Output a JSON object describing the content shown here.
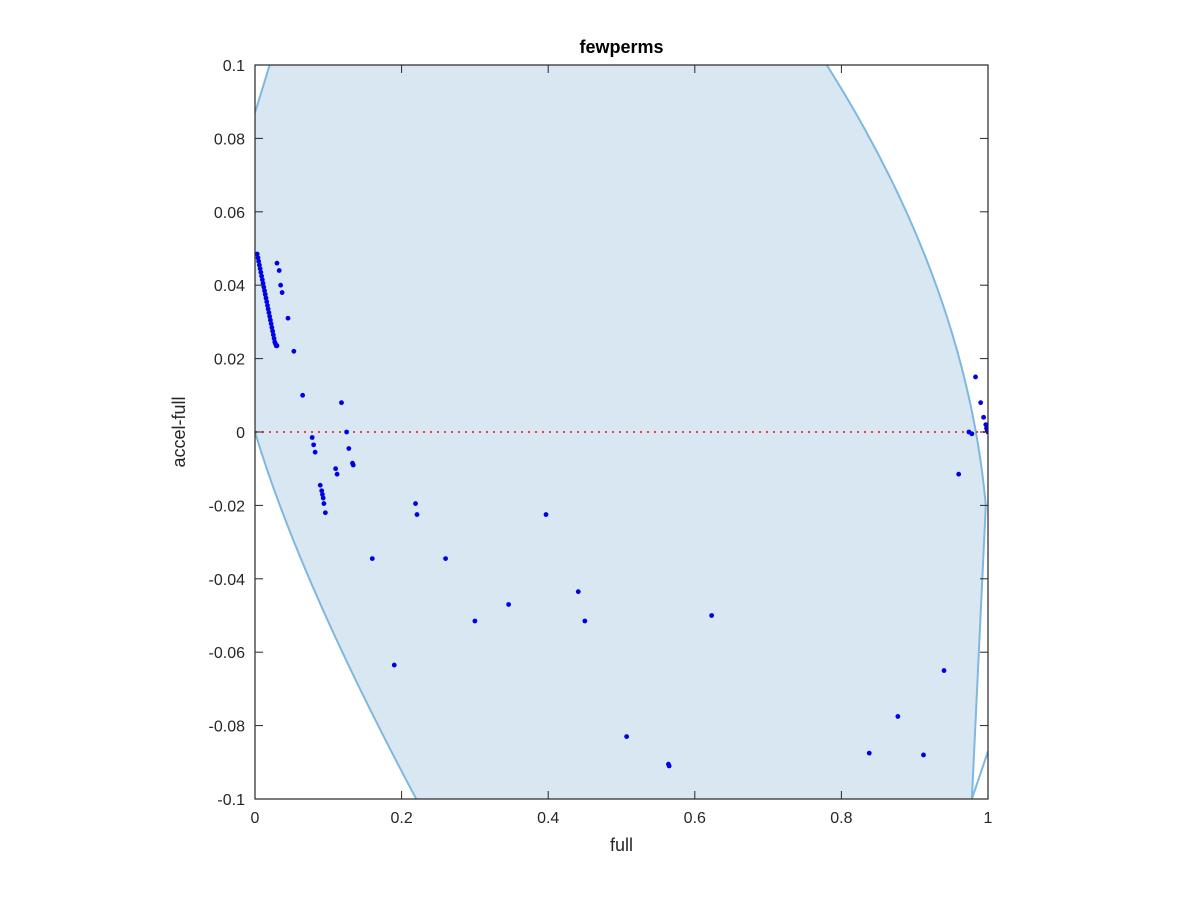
{
  "chart_data": {
    "type": "scatter",
    "title": "fewperms",
    "xlabel": "full",
    "ylabel": "accel-full",
    "xlim": [
      0,
      1
    ],
    "ylim": [
      -0.1,
      0.1
    ],
    "x_ticks": [
      0,
      0.2,
      0.4,
      0.6,
      0.8,
      1
    ],
    "x_tick_labels": [
      "0",
      "0.2",
      "0.4",
      "0.6",
      "0.8",
      "1"
    ],
    "y_ticks": [
      -0.1,
      -0.08,
      -0.06,
      -0.04,
      -0.02,
      0,
      0.02,
      0.04,
      0.06,
      0.08,
      0.1
    ],
    "y_tick_labels": [
      "-0.1",
      "-0.08",
      "-0.06",
      "-0.04",
      "-0.02",
      "0",
      "0.02",
      "0.04",
      "0.06",
      "0.08",
      "0.1"
    ],
    "grid": false,
    "reference_line": {
      "y": 0,
      "style": "dotted",
      "color": "#e8424a"
    },
    "feasible_region": {
      "fill": "#d9e7f3",
      "edge": "#7fb8df",
      "description": "region between y = -x and y = 1 - x"
    },
    "colors": {
      "points": "#0000e6",
      "axes": "#262626"
    },
    "series": [
      {
        "x": [
          0.003,
          0.004,
          0.005,
          0.006,
          0.007,
          0.008,
          0.009,
          0.01,
          0.011,
          0.012,
          0.013,
          0.014,
          0.015,
          0.016,
          0.017,
          0.018,
          0.019,
          0.02,
          0.021,
          0.022,
          0.023,
          0.024,
          0.025,
          0.026,
          0.027,
          0.028,
          0.029,
          0.03,
          0.03,
          0.033,
          0.035,
          0.037,
          0.045,
          0.053,
          0.065,
          0.078,
          0.08,
          0.082,
          0.118,
          0.125,
          0.128,
          0.133,
          0.134,
          0.11,
          0.112,
          0.089,
          0.091,
          0.092,
          0.093,
          0.094,
          0.096,
          0.16,
          0.19,
          0.219,
          0.221,
          0.26,
          0.3,
          0.346,
          0.397,
          0.441,
          0.45,
          0.507,
          0.564,
          0.565,
          0.623,
          0.838,
          0.877,
          0.912,
          0.94,
          0.96,
          0.974,
          0.978,
          0.983,
          0.99,
          0.994,
          0.997,
          0.998,
          0.999,
          1.0,
          0.999
        ],
        "y": [
          0.0485,
          0.0475,
          0.0465,
          0.0455,
          0.0445,
          0.0435,
          0.0425,
          0.0415,
          0.0405,
          0.0395,
          0.0385,
          0.0375,
          0.0365,
          0.0355,
          0.0345,
          0.0335,
          0.0325,
          0.0315,
          0.0305,
          0.0295,
          0.0285,
          0.0275,
          0.0265,
          0.0255,
          0.0245,
          0.024,
          0.0235,
          0.0235,
          0.046,
          0.044,
          0.04,
          0.038,
          0.031,
          0.022,
          0.01,
          -0.0015,
          -0.0035,
          -0.0055,
          0.008,
          0.0,
          -0.0045,
          -0.0085,
          -0.009,
          -0.01,
          -0.0115,
          -0.0145,
          -0.016,
          -0.017,
          -0.018,
          -0.0195,
          -0.022,
          -0.0345,
          -0.0635,
          -0.0195,
          -0.0225,
          -0.0345,
          -0.0515,
          -0.047,
          -0.0225,
          -0.0435,
          -0.0515,
          -0.083,
          -0.0905,
          -0.091,
          -0.05,
          -0.0875,
          -0.0775,
          -0.088,
          -0.065,
          -0.0115,
          0.0,
          -0.0005,
          0.015,
          0.008,
          0.004,
          0.002,
          0.001,
          0.0005,
          0.0,
          0.001
        ]
      }
    ]
  }
}
